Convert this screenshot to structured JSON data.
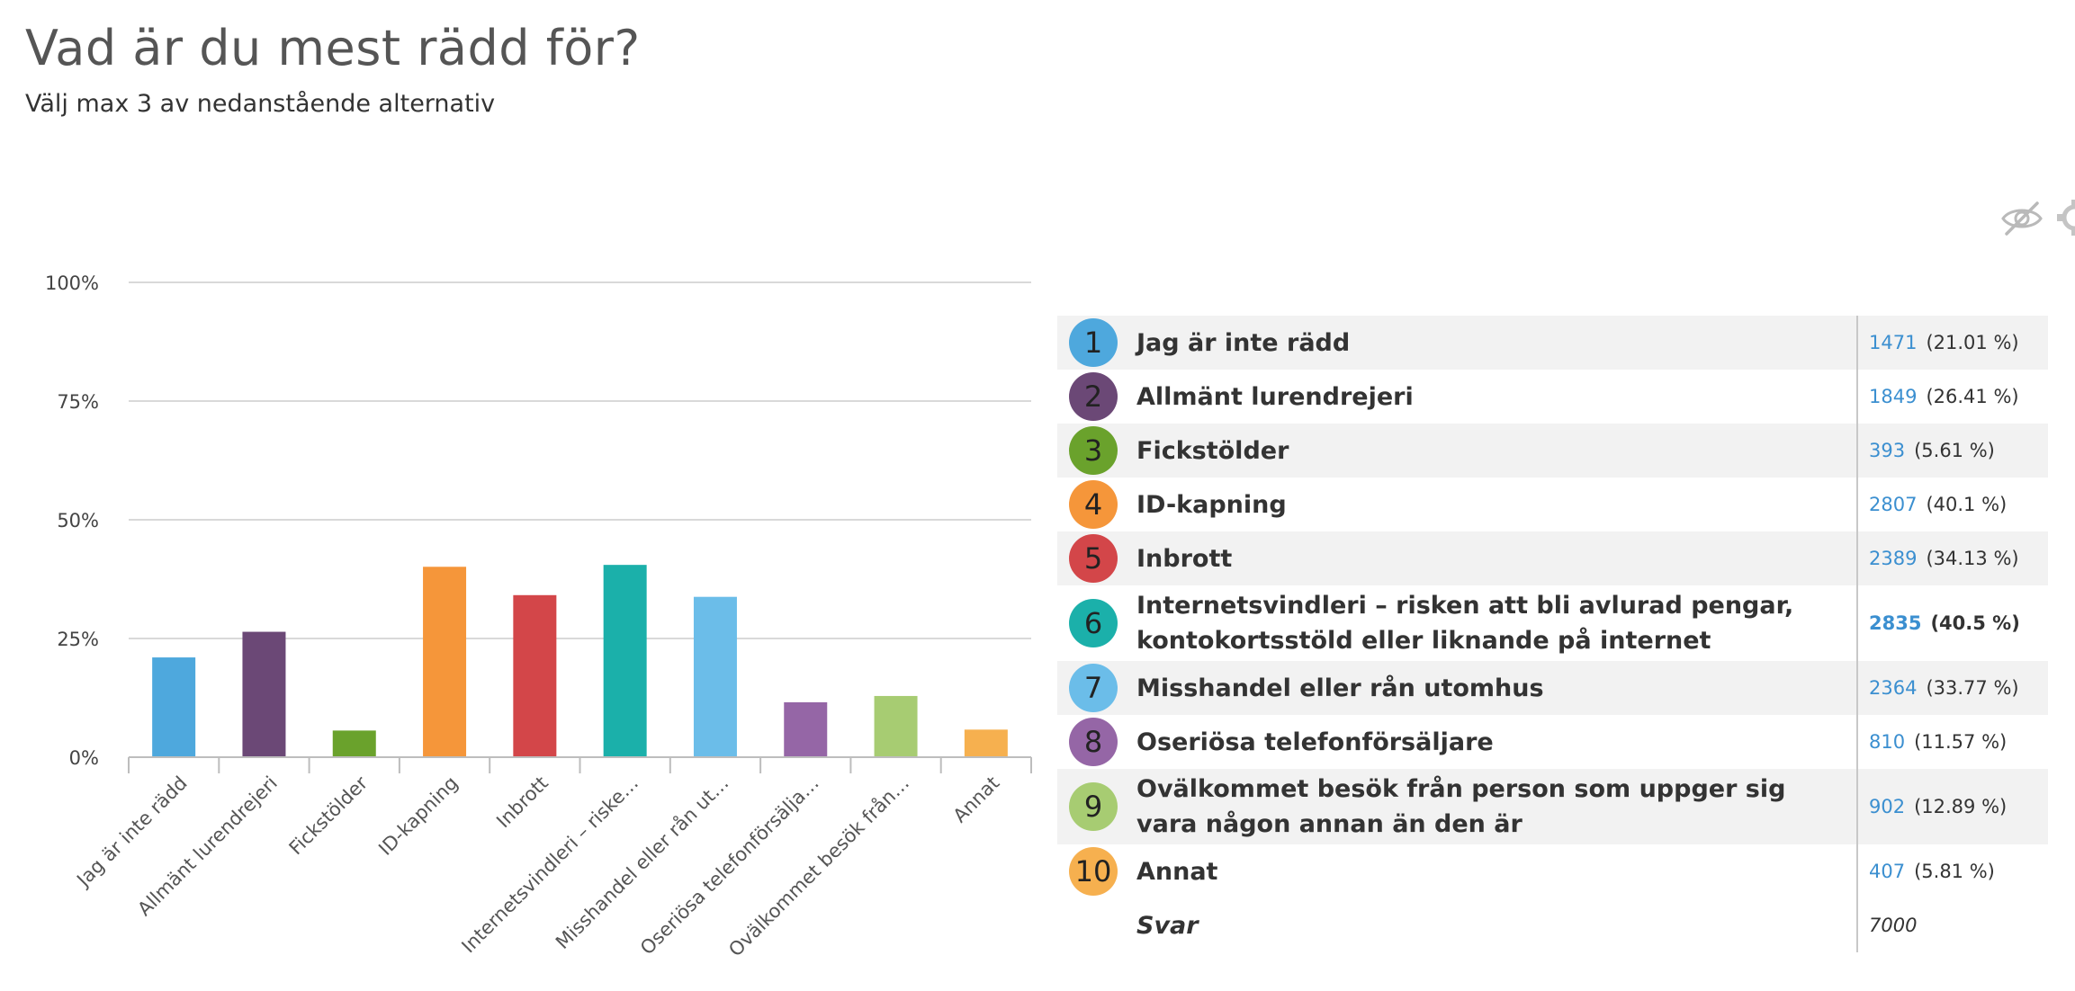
{
  "page": {
    "title": "Vad är du mest rädd för?",
    "subtitle": "Välj max 3 av nedanstående alternativ",
    "hide_icon": "eye-slash-icon"
  },
  "chart_data": {
    "type": "bar",
    "categories": [
      "Jag är inte rädd",
      "Allmänt lurendrejeri",
      "Fickstölder",
      "ID-kapning",
      "Inbrott",
      "Internetsvindleri – riske…",
      "Misshandel eller rån ut…",
      "Oseriösa telefonförsälja…",
      "Ovälkommet besök från…",
      "Annat"
    ],
    "values": [
      21.01,
      26.41,
      5.61,
      40.1,
      34.13,
      40.5,
      33.77,
      11.57,
      12.89,
      5.81
    ],
    "colors": [
      "#4ea8dd",
      "#6b4876",
      "#6aa22c",
      "#f5963a",
      "#d34649",
      "#1bb0aa",
      "#6bbde9",
      "#9566a6",
      "#a7cc72",
      "#f6b04f"
    ],
    "ylim": [
      0,
      100
    ],
    "yticks": [
      "0%",
      "25%",
      "50%",
      "75%",
      "100%"
    ],
    "grid": true
  },
  "table": {
    "rows": [
      {
        "num": "1",
        "label": "Jag är inte rädd",
        "count": "1471",
        "pct": "(21.01 %)"
      },
      {
        "num": "2",
        "label": "Allmänt lurendrejeri",
        "count": "1849",
        "pct": "(26.41 %)"
      },
      {
        "num": "3",
        "label": "Fickstölder",
        "count": "393",
        "pct": "(5.61 %)"
      },
      {
        "num": "4",
        "label": "ID-kapning",
        "count": "2807",
        "pct": "(40.1 %)"
      },
      {
        "num": "5",
        "label": "Inbrott",
        "count": "2389",
        "pct": "(34.13 %)"
      },
      {
        "num": "6",
        "label": "Internetsvindleri – risken att bli avlurad pengar, kontokortsstöld eller liknande på internet",
        "count": "2835",
        "pct": "(40.5 %)"
      },
      {
        "num": "7",
        "label": "Misshandel eller rån utomhus",
        "count": "2364",
        "pct": "(33.77 %)"
      },
      {
        "num": "8",
        "label": "Oseriösa telefonförsäljare",
        "count": "810",
        "pct": "(11.57 %)"
      },
      {
        "num": "9",
        "label": "Ovälkommet besök från person som uppger sig vara någon annan än den är",
        "count": "902",
        "pct": "(12.89 %)"
      },
      {
        "num": "10",
        "label": "Annat",
        "count": "407",
        "pct": "(5.81 %)"
      }
    ],
    "total_label": "Svar",
    "total_value": "7000"
  }
}
